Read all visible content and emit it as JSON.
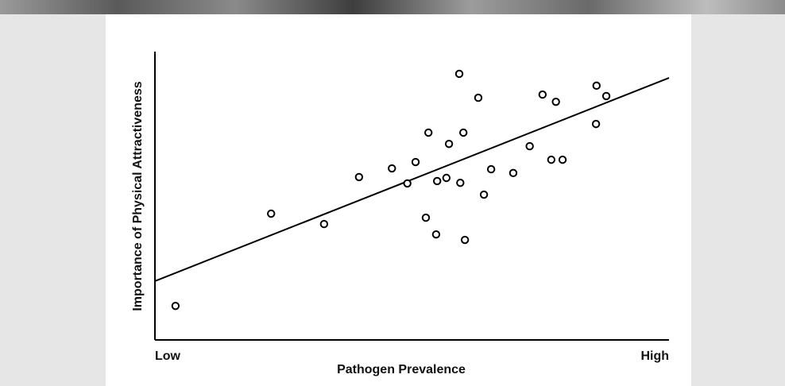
{
  "chart_data": {
    "type": "scatter",
    "xlabel": "Pathogen Prevalence",
    "ylabel": "Importance of Physical Attractiveness",
    "xlim": [
      0,
      100
    ],
    "ylim": [
      0,
      100
    ],
    "xticks": [
      {
        "value": 0,
        "label": "Low"
      },
      {
        "value": 100,
        "label": "High"
      }
    ],
    "color": "#000000",
    "x": [
      4.0,
      22.6,
      32.9,
      39.7,
      46.1,
      49.1,
      50.7,
      52.7,
      53.2,
      54.7,
      54.9,
      56.7,
      57.2,
      59.2,
      59.4,
      60.0,
      60.3,
      62.9,
      64.0,
      65.4,
      69.7,
      72.9,
      75.4,
      77.1,
      78.0,
      79.3,
      85.8,
      85.9,
      87.8
    ],
    "y": [
      11.8,
      43.8,
      40.2,
      56.5,
      59.5,
      54.3,
      61.7,
      42.4,
      71.9,
      36.6,
      55.1,
      56.2,
      68.0,
      92.3,
      54.5,
      71.9,
      34.7,
      84.0,
      50.4,
      59.2,
      57.9,
      67.2,
      85.1,
      62.5,
      82.6,
      62.5,
      74.9,
      88.2,
      84.6
    ],
    "trend_line": {
      "x": [
        0,
        100
      ],
      "y": [
        20.4,
        90.9
      ]
    }
  }
}
